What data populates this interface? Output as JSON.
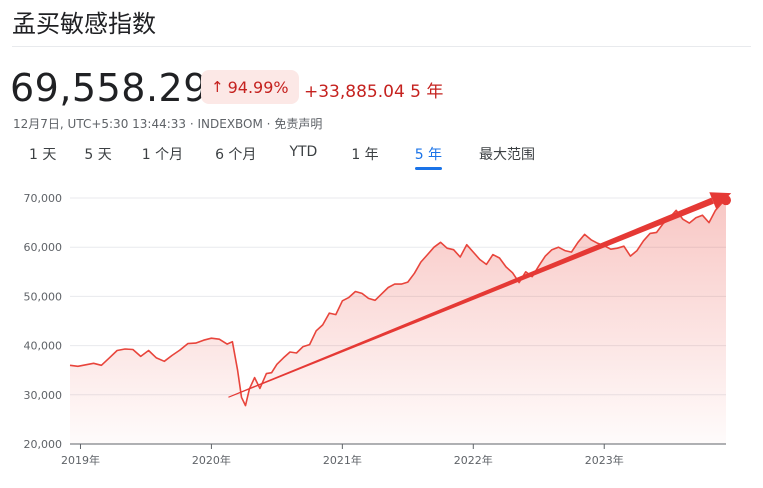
{
  "header": {
    "title": "孟买敏感指数",
    "price": "69,558.29",
    "change_pct": "94.99%",
    "change_abs": "+33,885.04",
    "period": "5 年",
    "meta_prefix": "12月7日, UTC+5:30 13:44:33 · INDEXBOM · ",
    "disclaimer": "免责声明"
  },
  "colors": {
    "accent": "#1a73e8",
    "negative": "#c5221f",
    "line": "#e8453c",
    "arrow": "#e53935"
  },
  "tabs": [
    {
      "label": "1 天",
      "active": false
    },
    {
      "label": "5 天",
      "active": false
    },
    {
      "label": "1 个月",
      "active": false
    },
    {
      "label": "6 个月",
      "active": false
    },
    {
      "label": "YTD",
      "active": false
    },
    {
      "label": "1 年",
      "active": false
    },
    {
      "label": "5 年",
      "active": true
    },
    {
      "label": "最大范围",
      "active": false
    }
  ],
  "chart_data": {
    "type": "area",
    "title": "",
    "xlabel": "",
    "ylabel": "",
    "ylim": [
      20000,
      70000
    ],
    "yticks": [
      "70,000",
      "60,000",
      "50,000",
      "40,000",
      "30,000",
      "20,000"
    ],
    "xticks": [
      {
        "label": "2019年",
        "t": 2019.0
      },
      {
        "label": "2020年",
        "t": 2020.0
      },
      {
        "label": "2021年",
        "t": 2021.0
      },
      {
        "label": "2022年",
        "t": 2022.0
      },
      {
        "label": "2023年",
        "t": 2023.0
      }
    ],
    "xlim": [
      2018.92,
      2023.93
    ],
    "series": [
      {
        "x": [
          2018.92,
          2018.98,
          2019.04,
          2019.1,
          2019.16,
          2019.22,
          2019.28,
          2019.34,
          2019.4,
          2019.46,
          2019.52,
          2019.58,
          2019.64,
          2019.7,
          2019.76,
          2019.82,
          2019.88,
          2019.94,
          2020.0,
          2020.06,
          2020.12,
          2020.16,
          2020.2,
          2020.23,
          2020.26,
          2020.29,
          2020.33,
          2020.37,
          2020.42,
          2020.46,
          2020.5,
          2020.55,
          2020.6,
          2020.65,
          2020.7,
          2020.75,
          2020.8,
          2020.85,
          2020.9,
          2020.95,
          2021.0,
          2021.05,
          2021.1,
          2021.15,
          2021.2,
          2021.25,
          2021.3,
          2021.35,
          2021.4,
          2021.45,
          2021.5,
          2021.55,
          2021.6,
          2021.65,
          2021.7,
          2021.75,
          2021.8,
          2021.85,
          2021.9,
          2021.95,
          2022.0,
          2022.05,
          2022.1,
          2022.15,
          2022.2,
          2022.25,
          2022.3,
          2022.35,
          2022.4,
          2022.45,
          2022.5,
          2022.55,
          2022.6,
          2022.65,
          2022.7,
          2022.75,
          2022.8,
          2022.85,
          2022.9,
          2022.95,
          2023.0,
          2023.05,
          2023.1,
          2023.15,
          2023.2,
          2023.25,
          2023.3,
          2023.35,
          2023.4,
          2023.45,
          2023.5,
          2023.55,
          2023.6,
          2023.65,
          2023.7,
          2023.75,
          2023.8,
          2023.85,
          2023.9,
          2023.93
        ],
        "values": [
          36000,
          35800,
          36100,
          36400,
          36000,
          37500,
          39000,
          39300,
          39200,
          37800,
          39000,
          37500,
          36800,
          38000,
          39100,
          40400,
          40500,
          41100,
          41500,
          41300,
          40300,
          40800,
          35000,
          29500,
          27800,
          31200,
          33500,
          31300,
          34300,
          34500,
          36200,
          37500,
          38700,
          38500,
          39800,
          40200,
          43000,
          44200,
          46600,
          46300,
          49100,
          49800,
          51000,
          50600,
          49600,
          49200,
          50500,
          51800,
          52500,
          52500,
          52900,
          54700,
          57000,
          58500,
          60000,
          61000,
          59800,
          59500,
          58000,
          60500,
          59000,
          57500,
          56500,
          58500,
          57800,
          56000,
          54800,
          52800,
          55000,
          54000,
          56200,
          58200,
          59500,
          60000,
          59300,
          59000,
          61000,
          62600,
          61500,
          60800,
          60300,
          59600,
          59800,
          60200,
          58200,
          59300,
          61300,
          62800,
          63000,
          64800,
          66000,
          67500,
          65700,
          64900,
          66000,
          66500,
          65000,
          67500,
          69000,
          69558
        ]
      }
    ],
    "annotation": {
      "type": "trend-arrow",
      "from": {
        "x": 2020.13,
        "y": 29500
      },
      "to": {
        "x": 2023.97,
        "y": 71000
      }
    },
    "grid": true,
    "legend": "none"
  }
}
